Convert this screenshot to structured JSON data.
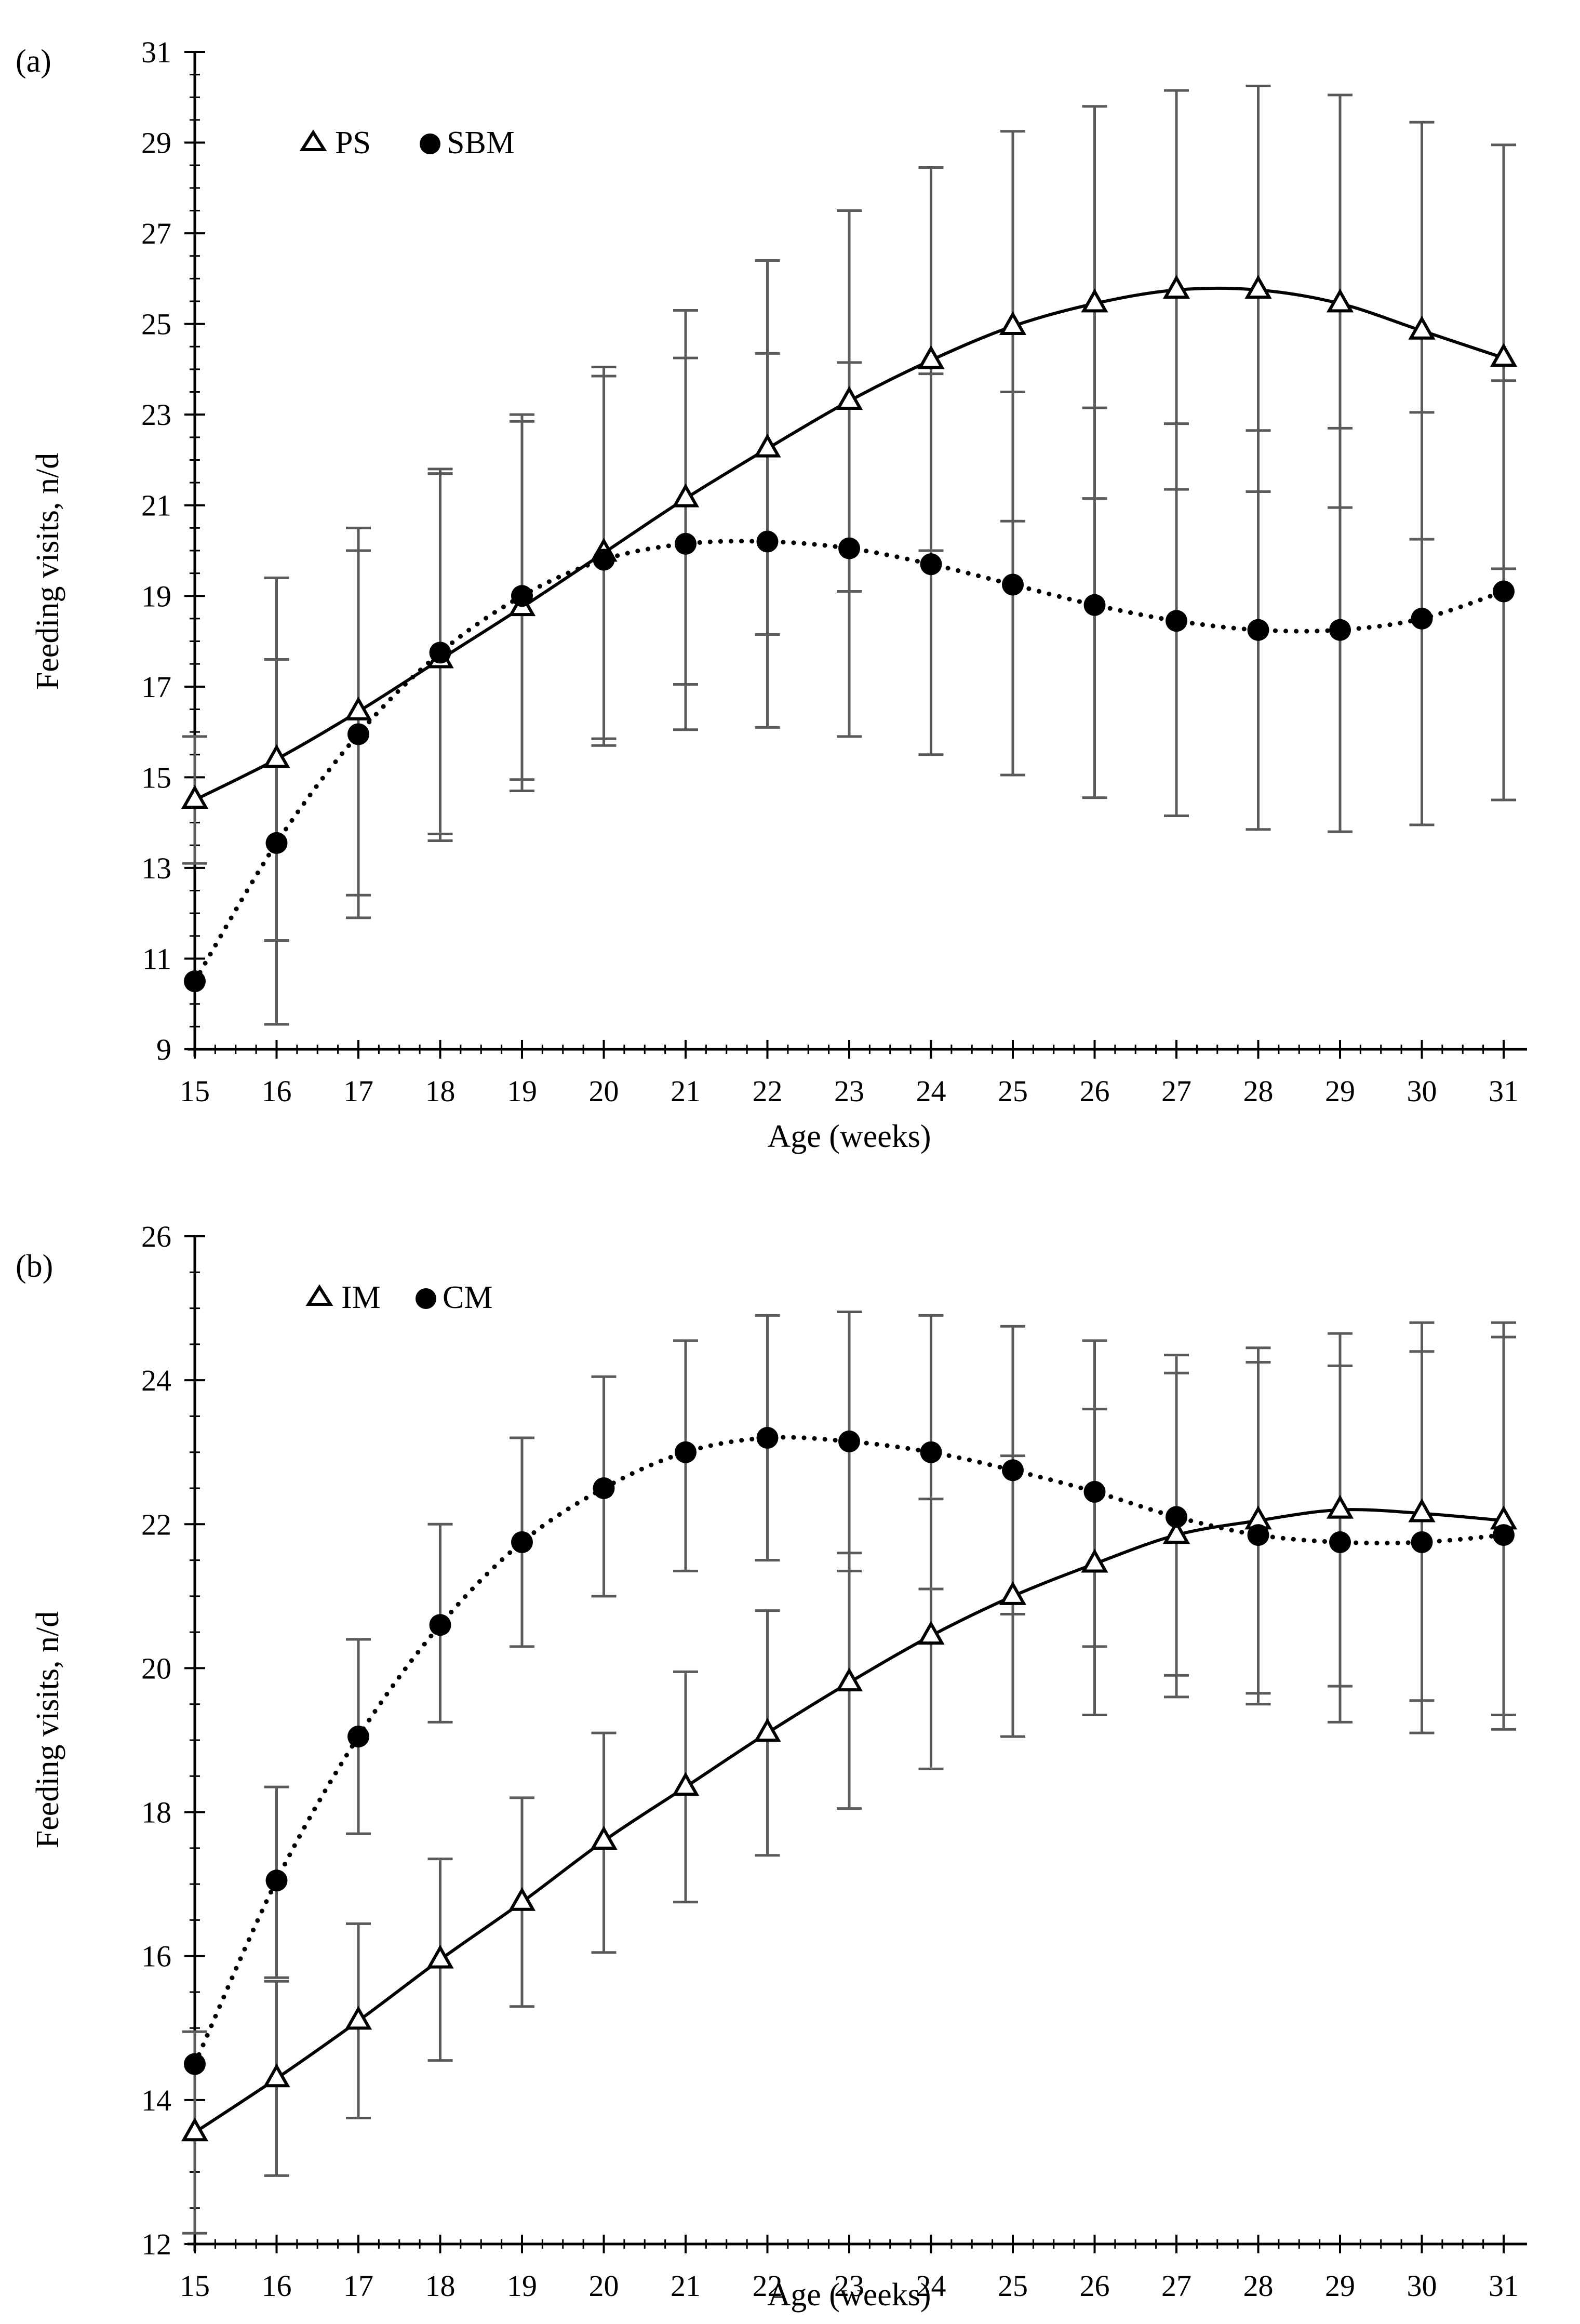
{
  "figure": {
    "background": "#ffffff",
    "axis_color": "#000000",
    "errorbar_color": "#5a5a5a"
  },
  "chart_data": [
    {
      "panel_label": "(a)",
      "type": "line",
      "x": [
        15,
        16,
        17,
        18,
        19,
        20,
        21,
        22,
        23,
        24,
        25,
        26,
        27,
        28,
        29,
        30,
        31
      ],
      "xlim": [
        15,
        31
      ],
      "ylim": [
        9,
        31
      ],
      "yticks": [
        9,
        11,
        13,
        15,
        17,
        19,
        21,
        23,
        25,
        27,
        29,
        31
      ],
      "xlabel": "Age (weeks)",
      "ylabel": "Feeding visits, n/d",
      "grid": false,
      "legend_position": "top-left",
      "series": [
        {
          "name": "PS",
          "marker": "triangle-open",
          "line_style": "solid",
          "values": [
            14.5,
            15.4,
            16.45,
            17.6,
            18.75,
            19.95,
            21.15,
            22.25,
            23.3,
            24.2,
            24.95,
            25.45,
            25.75,
            25.75,
            25.45,
            24.85,
            24.25
          ],
          "error_upper": [
            15.9,
            19.4,
            20.5,
            21.8,
            23.0,
            24.05,
            25.3,
            26.4,
            27.5,
            28.45,
            29.25,
            29.8,
            30.15,
            30.25,
            30.05,
            29.45,
            28.95
          ],
          "error_lower": [
            13.1,
            11.4,
            12.4,
            13.6,
            14.7,
            15.85,
            17.05,
            18.15,
            19.1,
            20.0,
            20.65,
            21.15,
            21.35,
            21.3,
            20.95,
            20.25,
            19.6
          ]
        },
        {
          "name": "SBM",
          "marker": "circle-filled",
          "line_style": "dotted",
          "values": [
            10.5,
            13.55,
            15.95,
            17.75,
            19.0,
            19.8,
            20.15,
            20.2,
            20.05,
            19.7,
            19.25,
            18.8,
            18.45,
            18.25,
            18.25,
            18.5,
            19.1
          ],
          "error_upper": [
            10.5,
            17.6,
            20.0,
            21.7,
            22.85,
            23.85,
            24.25,
            24.35,
            24.15,
            23.9,
            23.5,
            23.15,
            22.8,
            22.65,
            22.7,
            23.05,
            23.75
          ],
          "error_lower": [
            10.5,
            9.55,
            11.9,
            13.75,
            14.95,
            15.7,
            16.05,
            16.1,
            15.9,
            15.5,
            15.05,
            14.55,
            14.15,
            13.85,
            13.8,
            13.95,
            14.5
          ]
        }
      ]
    },
    {
      "panel_label": "(b)",
      "type": "line",
      "x": [
        15,
        16,
        17,
        18,
        19,
        20,
        21,
        22,
        23,
        24,
        25,
        26,
        27,
        28,
        29,
        30,
        31
      ],
      "xlim": [
        15,
        31
      ],
      "ylim": [
        12,
        26
      ],
      "yticks": [
        12,
        14,
        16,
        18,
        20,
        22,
        24,
        26
      ],
      "xlabel": "Age (weeks)",
      "ylabel": "Feeding visits, n/d",
      "grid": false,
      "legend_position": "top-left",
      "series": [
        {
          "name": "IM",
          "marker": "triangle-open",
          "line_style": "solid",
          "values": [
            13.55,
            14.3,
            15.1,
            15.95,
            16.75,
            17.6,
            18.35,
            19.1,
            19.8,
            20.45,
            21.0,
            21.45,
            21.85,
            22.05,
            22.2,
            22.15,
            22.05
          ],
          "error_upper": [
            14.95,
            15.65,
            16.45,
            17.35,
            18.2,
            19.1,
            19.95,
            20.8,
            21.6,
            22.35,
            22.95,
            23.6,
            24.1,
            24.45,
            24.65,
            24.8,
            24.8
          ],
          "error_lower": [
            12.15,
            12.95,
            13.75,
            14.55,
            15.3,
            16.05,
            16.75,
            17.4,
            18.05,
            18.6,
            19.05,
            19.35,
            19.6,
            19.65,
            19.75,
            19.55,
            19.35
          ]
        },
        {
          "name": "CM",
          "marker": "circle-filled",
          "line_style": "dotted",
          "values": [
            14.5,
            17.05,
            19.05,
            20.6,
            21.75,
            22.5,
            23.0,
            23.2,
            23.15,
            23.0,
            22.75,
            22.45,
            22.1,
            21.85,
            21.75,
            21.75,
            21.85
          ],
          "error_upper": [
            14.5,
            18.35,
            20.4,
            22.0,
            23.2,
            24.05,
            24.55,
            24.9,
            24.95,
            24.9,
            24.75,
            24.55,
            24.35,
            24.25,
            24.2,
            24.4,
            24.6
          ],
          "error_lower": [
            14.5,
            15.7,
            17.7,
            19.25,
            20.3,
            21.0,
            21.35,
            21.5,
            21.35,
            21.1,
            20.75,
            20.3,
            19.9,
            19.5,
            19.25,
            19.1,
            19.15
          ]
        }
      ]
    }
  ]
}
